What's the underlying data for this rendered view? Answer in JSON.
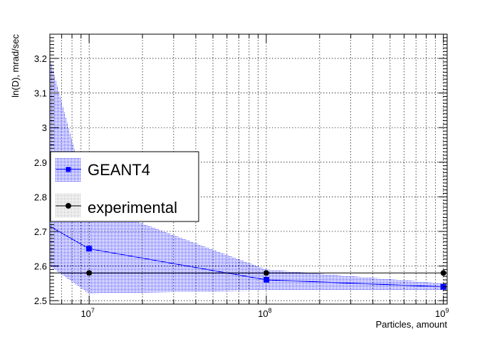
{
  "chart_data": {
    "type": "line",
    "xlabel": "Particles, amount",
    "ylabel": "ln(D), mrad/sec",
    "xscale": "log",
    "xlim": [
      6000000,
      1050000000
    ],
    "ylim": [
      2.49,
      3.27
    ],
    "grid": true,
    "legend_position": "center-left",
    "y_ticks": [
      "2.5",
      "2.6",
      "2.7",
      "2.8",
      "2.9",
      "3",
      "3.1",
      "3.2"
    ],
    "x_ticks": [
      {
        "base": "10",
        "exp": "7",
        "value": 10000000
      },
      {
        "base": "10",
        "exp": "8",
        "value": 100000000
      },
      {
        "base": "10",
        "exp": "9",
        "value": 1000000000
      }
    ],
    "series": [
      {
        "name": "GEANT4",
        "color": "#0000ff",
        "marker": "square",
        "x": [
          6000000,
          10000000,
          100000000,
          1000000000
        ],
        "y": [
          2.715,
          2.65,
          2.56,
          2.54
        ],
        "band_upper": [
          3.2,
          2.78,
          2.59,
          2.55
        ],
        "band_lower": [
          2.6,
          2.52,
          2.53,
          2.53
        ]
      },
      {
        "name": "experimental",
        "color": "#000000",
        "marker": "circle",
        "x": [
          6000000,
          10000000,
          100000000,
          1000000000
        ],
        "y": [
          2.58,
          2.58,
          2.58,
          2.58
        ]
      }
    ]
  }
}
